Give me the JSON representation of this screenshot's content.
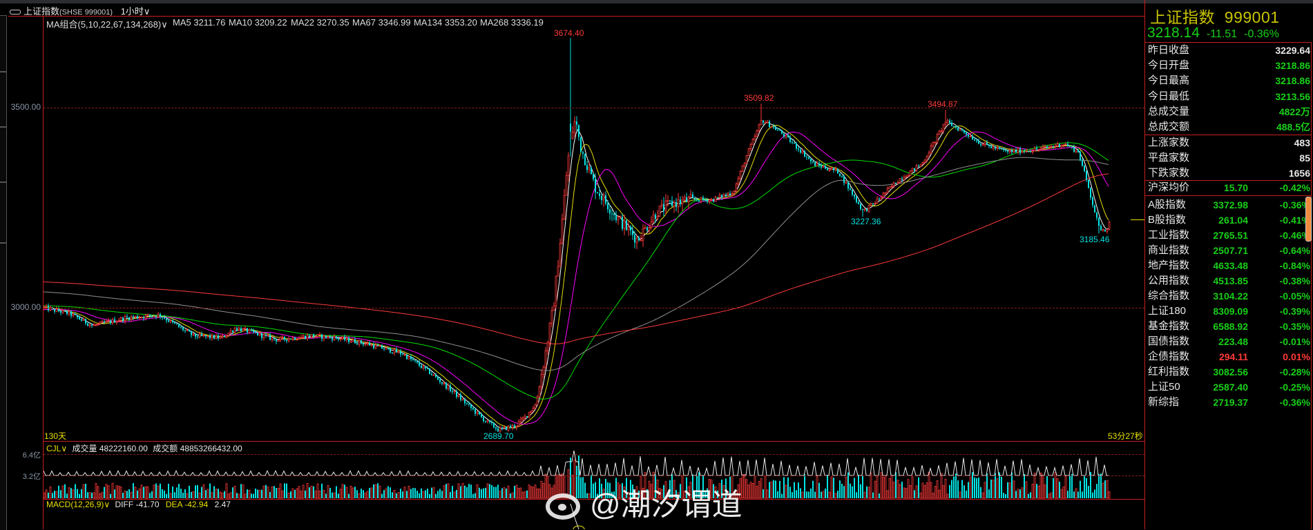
{
  "window": {
    "title": "上证指数",
    "symbol_code": "(SHSE 999001)",
    "period": "1小时",
    "period_caret": "∨",
    "link_icon": "link-icon"
  },
  "main_chart": {
    "legend": [
      {
        "label": "MA组合(5,10,22,67,134,268)∨",
        "color": "#e8e000"
      },
      {
        "label": "MA5 3211.76",
        "color": "#ffffff"
      },
      {
        "label": "MA10 3209.22",
        "color": "#e8e000"
      },
      {
        "label": "MA22 3270.35",
        "color": "#ff00ff"
      },
      {
        "label": "MA67 3346.99",
        "color": "#00e000"
      },
      {
        "label": "MA134 3353.20",
        "color": "#909090"
      },
      {
        "label": "MA268 3336.19",
        "color": "#ff3a3a"
      }
    ],
    "y_axis": [
      "3500.00",
      "3000.00"
    ],
    "annotations": {
      "high1": "3674.40",
      "high2": "3509.82",
      "high3": "3494.87",
      "low1": "3227.36",
      "low2": "3185.46",
      "low3": "2689.70"
    },
    "span_label": "130天",
    "countdown": "53分27秒",
    "up_color": "#ff3a3a",
    "down_color": "#00e5e5"
  },
  "volume": {
    "indicator": "CJL∨",
    "vol_label": "成交量",
    "vol_value": "48222160.00",
    "amt_label": "成交额",
    "amt_value": "48853266432.00",
    "y_axis": [
      "6.4亿",
      "3.2亿"
    ]
  },
  "macd": {
    "indicator": "MACD(12,26,9)∨",
    "diff": "DIFF -41.70",
    "dea": "DEA -42.94",
    "macd": "2.47"
  },
  "quote": {
    "name": "上证指数",
    "code": "999001",
    "price": "3218.14",
    "change": "-11.51",
    "change_pct": "-0.36%",
    "stats": [
      {
        "label": "昨日收盘",
        "value": "3229.64",
        "color": "#e8e8e8"
      },
      {
        "label": "今日开盘",
        "value": "3218.86",
        "color": "#18d018"
      },
      {
        "label": "今日最高",
        "value": "3218.86",
        "color": "#18d018"
      },
      {
        "label": "今日最低",
        "value": "3213.56",
        "color": "#18d018"
      },
      {
        "label": "总成交量",
        "value": "4822万",
        "color": "#18d018"
      },
      {
        "label": "总成交额",
        "value": "488.5亿",
        "color": "#18d018"
      }
    ],
    "breadth": [
      {
        "label": "上涨家数",
        "value": "483"
      },
      {
        "label": "平盘家数",
        "value": "85"
      },
      {
        "label": "下跌家数",
        "value": "1656"
      }
    ],
    "avg": {
      "label": "沪深均价",
      "value": "15.70",
      "pct": "-0.42%"
    },
    "indices": [
      {
        "label": "A股指数",
        "value": "3372.98",
        "pct": "-0.36%",
        "color": "#18d018"
      },
      {
        "label": "B股指数",
        "value": "261.04",
        "pct": "-0.41%",
        "color": "#18d018"
      },
      {
        "label": "工业指数",
        "value": "2765.51",
        "pct": "-0.46%",
        "color": "#18d018"
      },
      {
        "label": "商业指数",
        "value": "2507.71",
        "pct": "-0.64%",
        "color": "#18d018"
      },
      {
        "label": "地产指数",
        "value": "4633.48",
        "pct": "-0.84%",
        "color": "#18d018"
      },
      {
        "label": "公用指数",
        "value": "4513.85",
        "pct": "-0.38%",
        "color": "#18d018"
      },
      {
        "label": "综合指数",
        "value": "3104.22",
        "pct": "-0.05%",
        "color": "#18d018"
      },
      {
        "label": "上证180",
        "value": "8309.09",
        "pct": "-0.39%",
        "color": "#18d018"
      },
      {
        "label": "基金指数",
        "value": "6588.92",
        "pct": "-0.35%",
        "color": "#18d018"
      },
      {
        "label": "国债指数",
        "value": "223.48",
        "pct": "-0.01%",
        "color": "#18d018"
      },
      {
        "label": "企债指数",
        "value": "294.11",
        "pct": "0.01%",
        "color": "#ff3a3a"
      },
      {
        "label": "红利指数",
        "value": "3082.56",
        "pct": "-0.28%",
        "color": "#18d018"
      },
      {
        "label": "上证50",
        "value": "2587.40",
        "pct": "-0.25%",
        "color": "#18d018"
      },
      {
        "label": "新综指",
        "value": "2719.37",
        "pct": "-0.36%",
        "color": "#18d018"
      }
    ]
  },
  "watermark": {
    "text": "@潮汐谓道",
    "logo": "weibo-logo-icon"
  }
}
